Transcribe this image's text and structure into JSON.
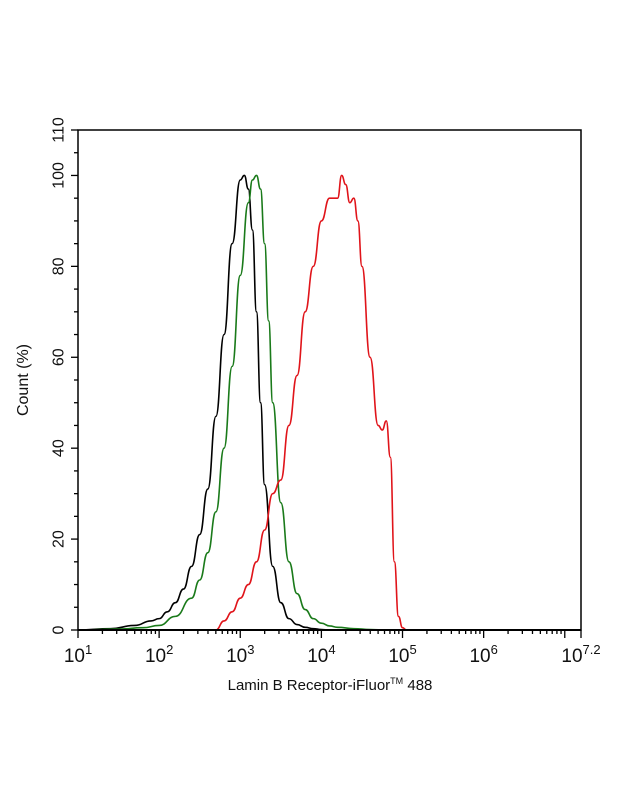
{
  "chart_data": {
    "type": "line",
    "title": "",
    "xlabel": "Lamin B Receptor-iFluor™ 488",
    "ylabel": "Count  (%)",
    "xscale": "log10",
    "xlim_log10": [
      1,
      7.2
    ],
    "ylim": [
      0,
      110
    ],
    "x_tick_labels": [
      "10^1",
      "10^2",
      "10^3",
      "10^4",
      "10^5",
      "10^6",
      "10^7.2"
    ],
    "x_ticks_log10": [
      1,
      2,
      3,
      4,
      5,
      6,
      7.2
    ],
    "y_ticks": [
      0,
      20,
      40,
      60,
      80,
      100,
      110
    ],
    "grid": false,
    "legend": null,
    "series": [
      {
        "name": "black",
        "color": "#000000",
        "x_log10": [
          1.0,
          1.4,
          1.7,
          1.9,
          2.0,
          2.1,
          2.2,
          2.3,
          2.4,
          2.5,
          2.6,
          2.7,
          2.8,
          2.9,
          3.0,
          3.05,
          3.1,
          3.15,
          3.2,
          3.25,
          3.3,
          3.4,
          3.5,
          3.6,
          3.7,
          3.8,
          3.9,
          4.0,
          4.1
        ],
        "values": [
          0,
          0.3,
          1,
          2,
          2.5,
          4,
          6,
          9,
          14,
          21,
          31,
          47,
          65,
          85,
          99,
          100,
          97,
          88,
          70,
          50,
          32,
          14,
          6,
          2.5,
          1.2,
          0.6,
          0.3,
          0.1,
          0
        ]
      },
      {
        "name": "green",
        "color": "#1a7a1a",
        "x_log10": [
          1.0,
          1.5,
          1.8,
          2.0,
          2.2,
          2.4,
          2.5,
          2.6,
          2.7,
          2.8,
          2.9,
          3.0,
          3.1,
          3.15,
          3.2,
          3.25,
          3.3,
          3.35,
          3.4,
          3.5,
          3.6,
          3.7,
          3.8,
          3.9,
          4.0,
          4.1,
          4.2,
          4.4,
          4.6,
          4.8
        ],
        "values": [
          0,
          0.2,
          0.5,
          1,
          3,
          7,
          11,
          17,
          26,
          40,
          58,
          78,
          94,
          99,
          100,
          97,
          85,
          68,
          50,
          28,
          15,
          8,
          4.5,
          2.5,
          1.5,
          0.9,
          0.6,
          0.3,
          0.1,
          0
        ]
      },
      {
        "name": "red",
        "color": "#e0141a",
        "x_log10": [
          2.7,
          2.8,
          2.9,
          3.0,
          3.1,
          3.2,
          3.3,
          3.4,
          3.5,
          3.6,
          3.7,
          3.8,
          3.9,
          4.0,
          4.1,
          4.2,
          4.25,
          4.3,
          4.35,
          4.4,
          4.45,
          4.5,
          4.6,
          4.7,
          4.75,
          4.8,
          4.85,
          4.9,
          4.95,
          5.0,
          5.05,
          5.1,
          5.15
        ],
        "values": [
          0,
          2,
          4,
          7,
          10,
          15,
          22,
          30,
          33,
          45,
          56,
          70,
          80,
          90,
          95,
          95,
          100,
          98,
          94,
          95,
          90,
          80,
          60,
          45,
          44,
          46,
          38,
          15,
          3,
          0.5,
          0,
          0,
          0
        ]
      }
    ]
  },
  "axes": {
    "y_label": "Count  (%)",
    "x_label_main": "Lamin B Receptor-iFluor",
    "x_label_tm": "TM",
    "x_label_suffix": " 488"
  }
}
